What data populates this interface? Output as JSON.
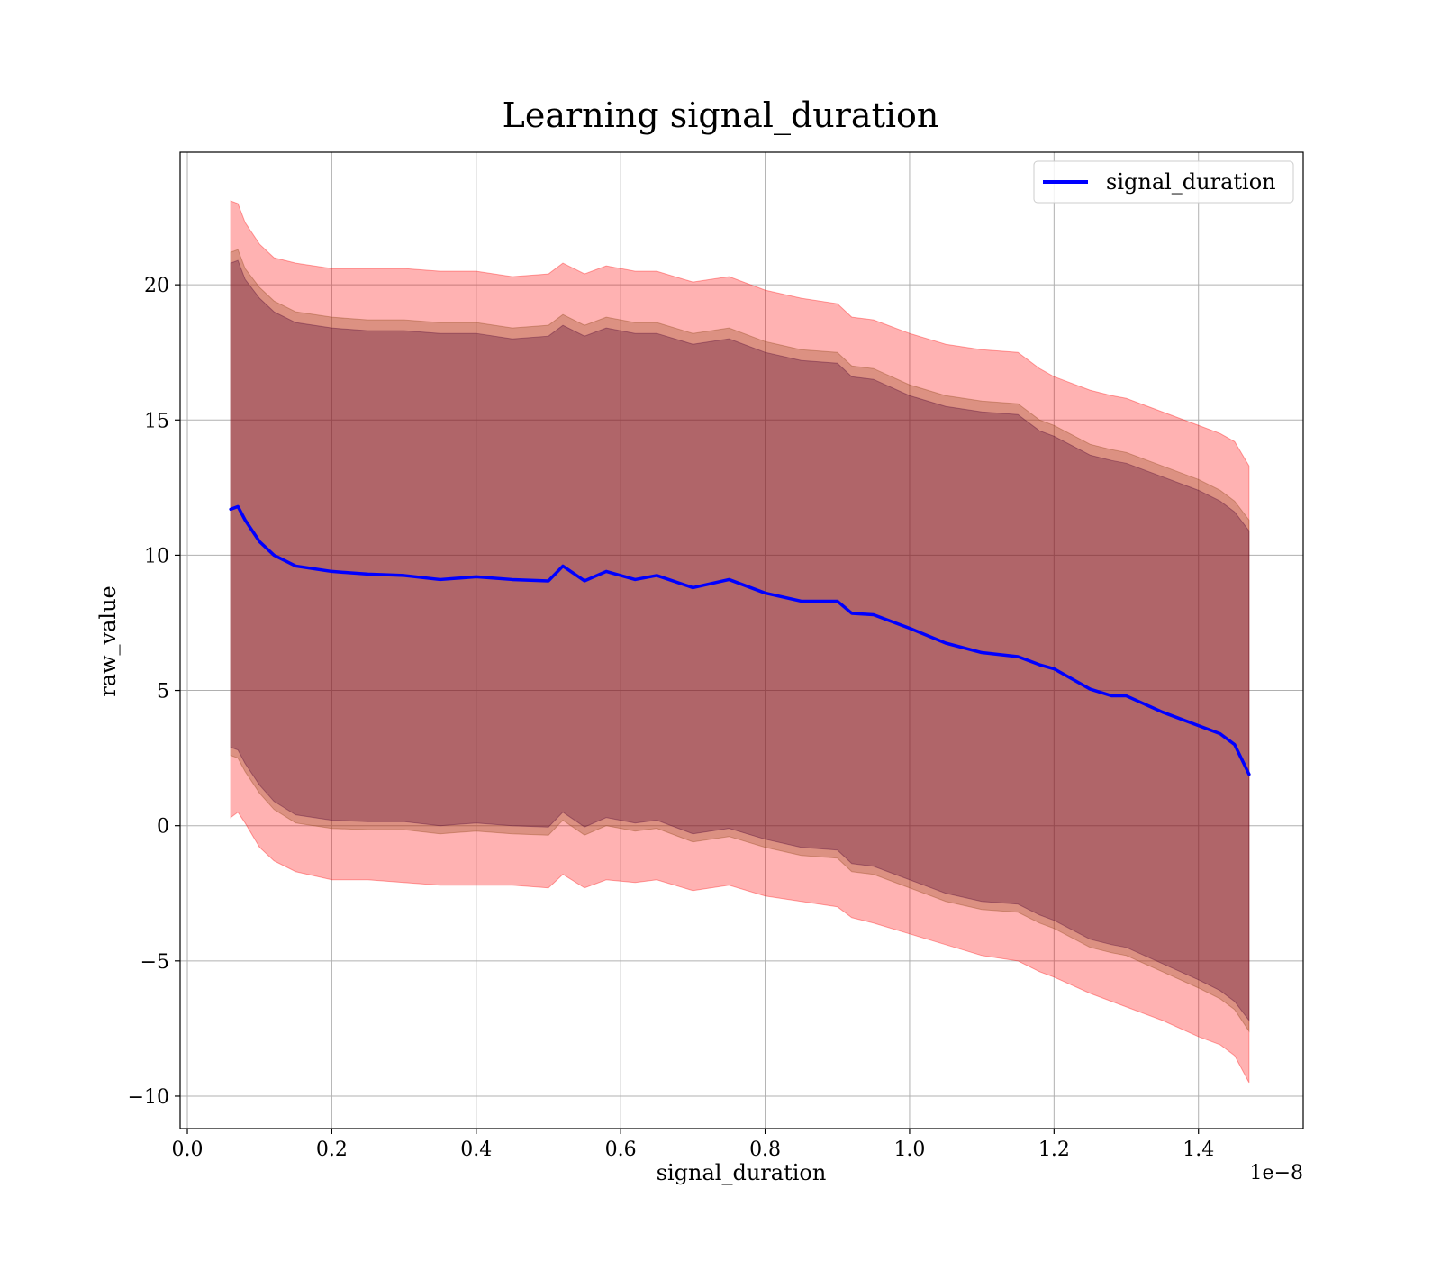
{
  "chart_data": {
    "type": "line",
    "title": "Learning signal_duration",
    "xlabel": "signal_duration",
    "ylabel": "raw_value",
    "x_offset_text": "1e−8",
    "x_scale": 1e-08,
    "xlim": [
      -0.01,
      1.545
    ],
    "ylim": [
      -11.2,
      24.9
    ],
    "xticks": [
      0.0,
      0.2,
      0.4,
      0.6,
      0.8,
      1.0,
      1.2,
      1.4
    ],
    "xtick_labels": [
      "0.0",
      "0.2",
      "0.4",
      "0.6",
      "0.8",
      "1.0",
      "1.2",
      "1.4"
    ],
    "yticks": [
      -10,
      -5,
      0,
      5,
      10,
      15,
      20
    ],
    "ytick_labels": [
      "−10",
      "−5",
      "0",
      "5",
      "10",
      "15",
      "20"
    ],
    "grid": true,
    "legend_position": "top-right",
    "colors": {
      "line": "#0000ff",
      "band_outer": "#ff0000",
      "band_middle": "#8b4513",
      "band_inner": "#4b0033"
    },
    "x": [
      0.06,
      0.07,
      0.08,
      0.1,
      0.12,
      0.15,
      0.2,
      0.25,
      0.3,
      0.35,
      0.4,
      0.45,
      0.5,
      0.52,
      0.55,
      0.58,
      0.62,
      0.65,
      0.7,
      0.75,
      0.8,
      0.85,
      0.9,
      0.92,
      0.95,
      1.0,
      1.05,
      1.1,
      1.15,
      1.18,
      1.2,
      1.25,
      1.28,
      1.3,
      1.35,
      1.4,
      1.43,
      1.45,
      1.47
    ],
    "series": [
      {
        "name": "signal_duration",
        "values": [
          11.7,
          11.8,
          11.3,
          10.5,
          10.0,
          9.6,
          9.4,
          9.3,
          9.25,
          9.1,
          9.2,
          9.1,
          9.05,
          9.6,
          9.05,
          9.4,
          9.1,
          9.25,
          8.8,
          9.1,
          8.6,
          8.3,
          8.3,
          7.85,
          7.8,
          7.3,
          6.75,
          6.4,
          6.25,
          5.95,
          5.8,
          5.05,
          4.8,
          4.8,
          4.2,
          3.7,
          3.4,
          3.0,
          1.9
        ]
      }
    ],
    "bands": [
      {
        "upper": [
          23.1,
          23.0,
          22.3,
          21.5,
          21.0,
          20.8,
          20.6,
          20.6,
          20.6,
          20.5,
          20.5,
          20.3,
          20.4,
          20.8,
          20.4,
          20.7,
          20.5,
          20.5,
          20.1,
          20.3,
          19.8,
          19.5,
          19.3,
          18.8,
          18.7,
          18.2,
          17.8,
          17.6,
          17.5,
          16.9,
          16.6,
          16.1,
          15.9,
          15.8,
          15.3,
          14.8,
          14.5,
          14.2,
          13.3
        ],
        "lower": [
          0.3,
          0.5,
          0.1,
          -0.8,
          -1.3,
          -1.7,
          -2.0,
          -2.0,
          -2.1,
          -2.2,
          -2.2,
          -2.2,
          -2.3,
          -1.8,
          -2.3,
          -2.0,
          -2.1,
          -2.0,
          -2.4,
          -2.2,
          -2.6,
          -2.8,
          -3.0,
          -3.4,
          -3.6,
          -4.0,
          -4.4,
          -4.8,
          -5.0,
          -5.4,
          -5.6,
          -6.2,
          -6.5,
          -6.7,
          -7.2,
          -7.8,
          -8.1,
          -8.5,
          -9.5
        ]
      },
      {
        "upper": [
          21.2,
          21.3,
          20.6,
          19.9,
          19.4,
          19.0,
          18.8,
          18.7,
          18.7,
          18.6,
          18.6,
          18.4,
          18.5,
          18.9,
          18.5,
          18.8,
          18.6,
          18.6,
          18.2,
          18.4,
          17.9,
          17.6,
          17.5,
          17.0,
          16.9,
          16.3,
          15.9,
          15.7,
          15.6,
          15.0,
          14.8,
          14.1,
          13.9,
          13.8,
          13.3,
          12.8,
          12.4,
          12.0,
          11.3
        ],
        "lower": [
          2.6,
          2.5,
          2.0,
          1.2,
          0.6,
          0.1,
          -0.1,
          -0.15,
          -0.15,
          -0.3,
          -0.2,
          -0.3,
          -0.35,
          0.2,
          -0.35,
          0.0,
          -0.2,
          -0.1,
          -0.6,
          -0.4,
          -0.8,
          -1.1,
          -1.2,
          -1.7,
          -1.8,
          -2.3,
          -2.8,
          -3.1,
          -3.2,
          -3.6,
          -3.8,
          -4.5,
          -4.7,
          -4.8,
          -5.4,
          -6.0,
          -6.4,
          -6.8,
          -7.6
        ]
      },
      {
        "upper": [
          20.8,
          20.9,
          20.2,
          19.5,
          19.0,
          18.6,
          18.4,
          18.3,
          18.3,
          18.2,
          18.2,
          18.0,
          18.1,
          18.5,
          18.1,
          18.4,
          18.2,
          18.2,
          17.8,
          18.0,
          17.5,
          17.2,
          17.1,
          16.6,
          16.5,
          15.9,
          15.5,
          15.3,
          15.2,
          14.6,
          14.4,
          13.7,
          13.5,
          13.4,
          12.9,
          12.4,
          12.0,
          11.6,
          10.9
        ],
        "lower": [
          2.9,
          2.8,
          2.3,
          1.5,
          0.9,
          0.4,
          0.2,
          0.15,
          0.15,
          0.0,
          0.1,
          0.0,
          -0.05,
          0.5,
          -0.05,
          0.3,
          0.1,
          0.2,
          -0.3,
          -0.1,
          -0.5,
          -0.8,
          -0.9,
          -1.4,
          -1.5,
          -2.0,
          -2.5,
          -2.8,
          -2.9,
          -3.3,
          -3.5,
          -4.2,
          -4.4,
          -4.5,
          -5.1,
          -5.7,
          -6.1,
          -6.5,
          -7.2
        ]
      }
    ]
  }
}
